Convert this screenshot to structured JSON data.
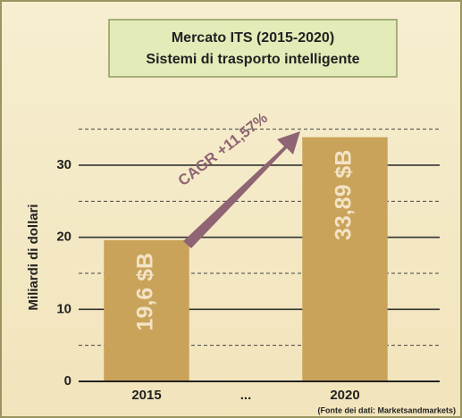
{
  "chart_data": {
    "type": "bar",
    "title": "Mercato ITS (2015-2020)",
    "subtitle": "Sistemi di trasporto intelligente",
    "ylabel": "Miliardi di dollari",
    "annotation": "CAGR +11,57%",
    "source": "(Fonte dei dati: Marketsandmarkets)",
    "categories": [
      "2015",
      "...",
      "2020"
    ],
    "values": [
      19.6,
      null,
      33.89
    ],
    "value_labels": [
      "19,6 $B",
      null,
      "33,89 $B"
    ],
    "color": "#c9a35a",
    "ylim": [
      0,
      35
    ],
    "yticks": [
      0,
      10,
      20,
      30
    ],
    "minor_yticks": [
      5,
      15,
      25,
      35
    ],
    "grid": true
  }
}
